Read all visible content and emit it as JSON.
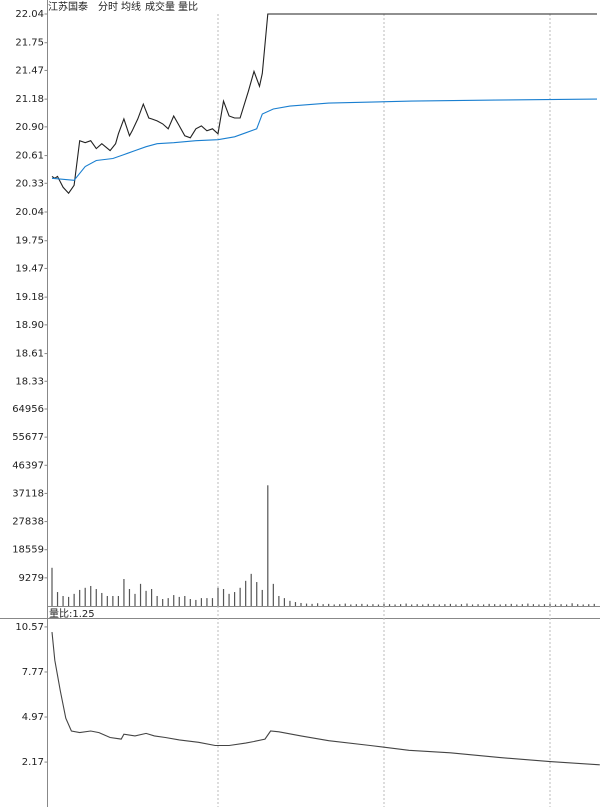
{
  "chart_data": [
    {
      "type": "line",
      "title": "江苏国泰",
      "xlim": [
        0,
        240
      ],
      "ylim": [
        18.04,
        22.04
      ],
      "up_color": "#d82020",
      "down_color": "#1a9a1a",
      "yticks": [
        {
          "value": 18.33,
          "label": "18.33"
        },
        18.61,
        {
          "value": 18.9,
          "label": "18.90"
        },
        19.18,
        19.47,
        19.75,
        20.04,
        20.33,
        20.61,
        {
          "value": 20.9,
          "label": "20.90"
        },
        21.18,
        21.47,
        21.75,
        22.04
      ],
      "series": [
        {
          "name": "分时",
          "color": "#222222",
          "x": [
            0,
            1,
            2,
            4,
            6,
            8,
            10,
            12,
            14,
            16,
            18,
            21,
            23,
            24,
            26,
            28,
            29,
            31,
            33,
            35,
            36,
            38,
            40,
            42,
            44,
            46,
            48,
            50,
            52,
            54,
            56,
            58,
            60,
            62,
            64,
            66,
            68,
            71,
            73,
            75,
            76,
            78,
            197
          ],
          "values": [
            20.4,
            20.38,
            20.4,
            20.29,
            20.23,
            20.31,
            20.76,
            20.74,
            20.76,
            20.68,
            20.73,
            20.66,
            20.73,
            20.83,
            20.98,
            20.81,
            20.86,
            20.98,
            21.13,
            20.99,
            20.98,
            20.96,
            20.93,
            20.88,
            21.01,
            20.91,
            20.81,
            20.79,
            20.88,
            20.91,
            20.86,
            20.88,
            20.83,
            21.16,
            21.01,
            20.99,
            20.99,
            21.26,
            21.46,
            21.31,
            21.44,
            22.04,
            22.04
          ]
        },
        {
          "name": "均线",
          "color": "#1a7fd0",
          "x": [
            0,
            8,
            12,
            16,
            22,
            26,
            30,
            34,
            38,
            44,
            52,
            60,
            66,
            70,
            74,
            76,
            80,
            86,
            100,
            130,
            160,
            197
          ],
          "values": [
            20.38,
            20.36,
            20.5,
            20.56,
            20.58,
            20.62,
            20.66,
            20.7,
            20.73,
            20.74,
            20.76,
            20.77,
            20.8,
            20.84,
            20.88,
            21.03,
            21.08,
            21.11,
            21.14,
            21.16,
            21.17,
            21.18
          ]
        }
      ]
    },
    {
      "type": "bar",
      "title": "成交量",
      "xlim": [
        0,
        240
      ],
      "ylim": [
        0,
        64956
      ],
      "color": "#555555",
      "yticks": [
        9279,
        18559,
        27838,
        37118,
        46397,
        55677,
        64956
      ],
      "x": [
        0,
        2,
        4,
        6,
        8,
        10,
        12,
        14,
        16,
        18,
        20,
        22,
        24,
        26,
        28,
        30,
        32,
        34,
        36,
        38,
        40,
        42,
        44,
        46,
        48,
        50,
        52,
        54,
        56,
        58,
        60,
        62,
        64,
        66,
        68,
        70,
        72,
        74,
        76,
        78,
        80,
        82,
        84,
        86,
        88,
        90,
        92,
        94,
        96,
        98,
        100,
        102,
        104,
        106,
        108,
        110,
        112,
        114,
        116,
        118,
        120,
        122,
        124,
        126,
        128,
        130,
        132,
        134,
        136,
        138,
        140,
        142,
        144,
        146,
        148,
        150,
        152,
        154,
        156,
        158,
        160,
        162,
        164,
        166,
        168,
        170,
        172,
        174,
        176,
        178,
        180,
        182,
        184,
        186,
        188,
        190,
        192,
        194,
        196
      ],
      "values": [
        12600,
        4600,
        3300,
        3000,
        4000,
        5300,
        6000,
        6600,
        5600,
        4300,
        3300,
        3300,
        3300,
        8900,
        5600,
        4000,
        7300,
        5000,
        5600,
        3300,
        2300,
        2600,
        3600,
        3000,
        3300,
        2300,
        2000,
        2600,
        2600,
        2600,
        6000,
        5600,
        4000,
        4600,
        6000,
        8300,
        10600,
        7900,
        5300,
        39800,
        7300,
        3300,
        2600,
        1700,
        1300,
        1000,
        800,
        700,
        900,
        600,
        700,
        500,
        600,
        800,
        500,
        600,
        700,
        500,
        600,
        500,
        700,
        600,
        500,
        600,
        800,
        500,
        600,
        500,
        700,
        600,
        500,
        600,
        700,
        500,
        600,
        800,
        500,
        600,
        500,
        700,
        600,
        500,
        600,
        700,
        500,
        600,
        800,
        600,
        500,
        600,
        700,
        500,
        600,
        500,
        900,
        600,
        500,
        600,
        700
      ]
    },
    {
      "type": "line",
      "title": "量比",
      "label": "量比:1.25",
      "xlim": [
        0,
        240
      ],
      "ylim": [
        0,
        11
      ],
      "color": "#444444",
      "yticks": [
        2.17,
        4.97,
        7.77,
        10.57
      ],
      "x": [
        0,
        1,
        3,
        5,
        7,
        10,
        14,
        17,
        21,
        25,
        26,
        30,
        34,
        37,
        41,
        46,
        53,
        59,
        64,
        70,
        73,
        77,
        79,
        82,
        90,
        100,
        115,
        129,
        144,
        162,
        180,
        198
      ],
      "values": [
        10.25,
        8.5,
        6.6,
        4.9,
        4.1,
        4.0,
        4.1,
        4.0,
        3.7,
        3.6,
        3.9,
        3.8,
        3.95,
        3.8,
        3.7,
        3.55,
        3.4,
        3.2,
        3.2,
        3.35,
        3.45,
        3.6,
        4.1,
        4.05,
        3.8,
        3.5,
        3.2,
        2.9,
        2.75,
        2.45,
        2.2,
        2.0
      ]
    }
  ]
}
